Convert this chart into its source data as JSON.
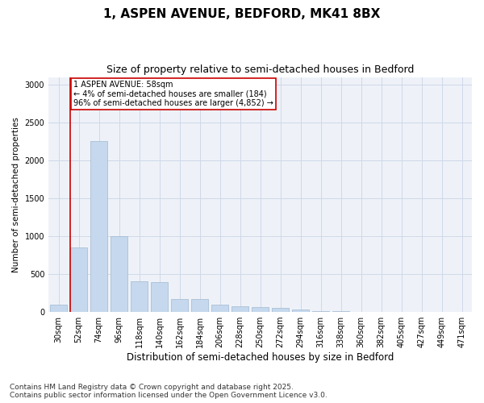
{
  "title1": "1, ASPEN AVENUE, BEDFORD, MK41 8BX",
  "title2": "Size of property relative to semi-detached houses in Bedford",
  "xlabel": "Distribution of semi-detached houses by size in Bedford",
  "ylabel": "Number of semi-detached properties",
  "categories": [
    "30sqm",
    "52sqm",
    "74sqm",
    "96sqm",
    "118sqm",
    "140sqm",
    "162sqm",
    "184sqm",
    "206sqm",
    "228sqm",
    "250sqm",
    "272sqm",
    "294sqm",
    "316sqm",
    "338sqm",
    "360sqm",
    "382sqm",
    "405sqm",
    "427sqm",
    "449sqm",
    "471sqm"
  ],
  "values": [
    100,
    850,
    2250,
    1000,
    400,
    390,
    175,
    175,
    100,
    75,
    60,
    50,
    30,
    15,
    8,
    6,
    5,
    4,
    3,
    2,
    1
  ],
  "bar_color": "#c5d8ed",
  "bar_edge_color": "#a0b8d0",
  "vline_bar_index": 1,
  "annotation_text": "1 ASPEN AVENUE: 58sqm\n← 4% of semi-detached houses are smaller (184)\n96% of semi-detached houses are larger (4,852) →",
  "annotation_box_color": "#ffffff",
  "annotation_box_edge_color": "#cc0000",
  "vline_color": "#cc0000",
  "grid_color": "#d0d8e8",
  "background_color": "#eef2f8",
  "footer_text": "Contains HM Land Registry data © Crown copyright and database right 2025.\nContains public sector information licensed under the Open Government Licence v3.0.",
  "ylim": [
    0,
    3100
  ],
  "title1_fontsize": 11,
  "title2_fontsize": 9,
  "xlabel_fontsize": 8.5,
  "ylabel_fontsize": 7.5,
  "tick_fontsize": 7,
  "annotation_fontsize": 7,
  "footer_fontsize": 6.5
}
